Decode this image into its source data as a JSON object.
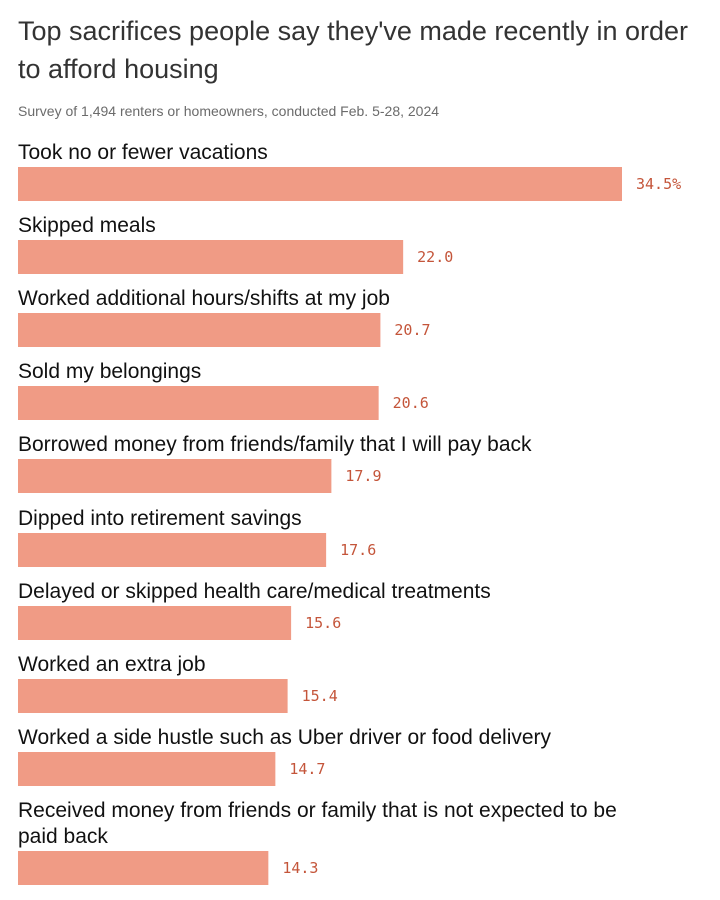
{
  "chart_data": {
    "type": "bar",
    "orientation": "horizontal",
    "title": "Top sacrifices people say they've made recently in order to afford housing",
    "subtitle": "Survey of 1,494 renters or homeowners, conducted Feb. 5-28, 2024",
    "value_suffix_first": "%",
    "xlim": [
      0,
      34.5
    ],
    "bar_color": "#f09b85",
    "label_color": "#c4553a",
    "categories": [
      "Took no or fewer vacations",
      "Skipped meals",
      "Worked additional hours/shifts at my job",
      "Sold my belongings",
      "Borrowed money from friends/family that I will pay back",
      "Dipped into retirement savings",
      "Delayed or skipped health care/medical treatments",
      "Worked an extra job",
      "Worked a side hustle such as Uber driver or food delivery",
      "Received money from friends or family that is not expected to be paid back"
    ],
    "category_lines": [
      [
        "Took no or fewer vacations"
      ],
      [
        "Skipped meals"
      ],
      [
        "Worked additional hours/shifts at my job"
      ],
      [
        "Sold my belongings"
      ],
      [
        "Borrowed money from friends/family that I will pay back"
      ],
      [
        "Dipped into retirement savings"
      ],
      [
        "Delayed or skipped health care/medical treatments"
      ],
      [
        "Worked an extra job"
      ],
      [
        "Worked a side hustle such as Uber driver or food delivery"
      ],
      [
        "Received money from friends or family that is not expected to be",
        "paid back"
      ]
    ],
    "values": [
      34.5,
      22.0,
      20.7,
      20.6,
      17.9,
      17.6,
      15.6,
      15.4,
      14.7,
      14.3
    ],
    "value_labels": [
      "34.5%",
      "22.0",
      "20.7",
      "20.6",
      "17.9",
      "17.6",
      "15.6",
      "15.4",
      "14.7",
      "14.3"
    ]
  }
}
